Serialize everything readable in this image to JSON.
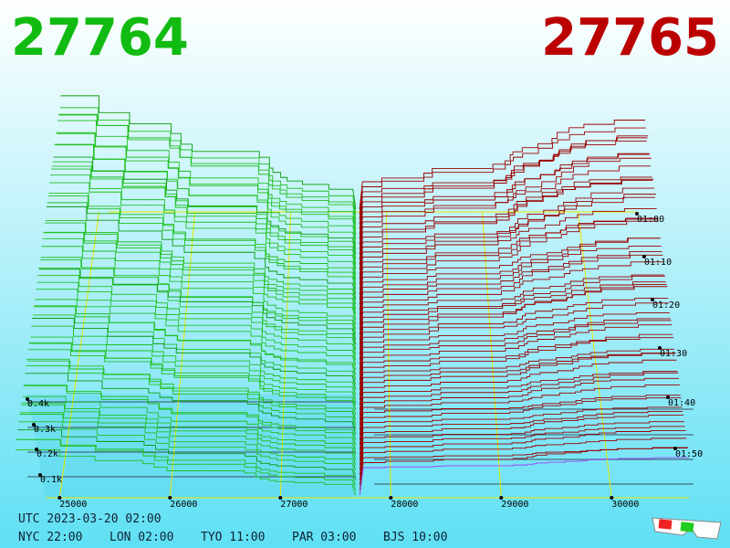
{
  "header": {
    "bid": "27764",
    "ask": "27765"
  },
  "axes": {
    "price_labels": [
      "25000",
      "26000",
      "27000",
      "28000",
      "29000",
      "30000"
    ],
    "time_labels": [
      "01:00",
      "01:10",
      "01:20",
      "01:30",
      "01:40",
      "01:50"
    ],
    "depth_labels": [
      "0.4k",
      "0.3k",
      "0.2k",
      "0.1k"
    ]
  },
  "footer": {
    "utc": "UTC 2023-03-20 02:00",
    "cities": [
      "NYC 22:00",
      "LON 02:00",
      "TYO 11:00",
      "PAR 03:00",
      "BJS 10:00"
    ]
  }
}
